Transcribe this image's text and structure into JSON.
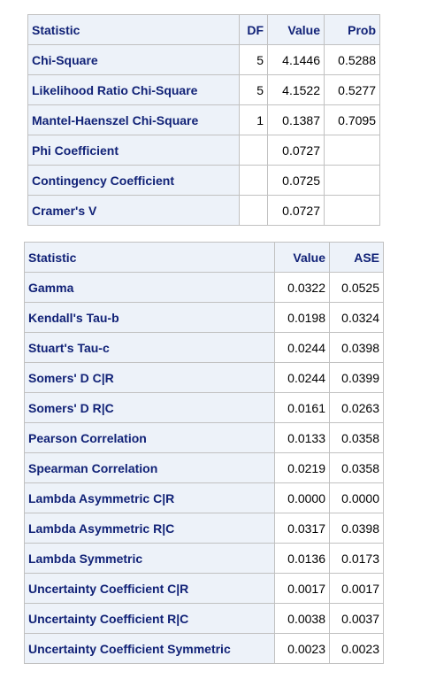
{
  "table1": {
    "headers": [
      "Statistic",
      "DF",
      "Value",
      "Prob"
    ],
    "rows": [
      {
        "statistic": "Chi-Square",
        "df": "5",
        "value": "4.1446",
        "prob": "0.5288"
      },
      {
        "statistic": "Likelihood Ratio Chi-Square",
        "df": "5",
        "value": "4.1522",
        "prob": "0.5277"
      },
      {
        "statistic": "Mantel-Haenszel Chi-Square",
        "df": "1",
        "value": "0.1387",
        "prob": "0.7095"
      },
      {
        "statistic": "Phi Coefficient",
        "df": "",
        "value": "0.0727",
        "prob": ""
      },
      {
        "statistic": "Contingency Coefficient",
        "df": "",
        "value": "0.0725",
        "prob": ""
      },
      {
        "statistic": "Cramer's V",
        "df": "",
        "value": "0.0727",
        "prob": ""
      }
    ]
  },
  "table2": {
    "headers": [
      "Statistic",
      "Value",
      "ASE"
    ],
    "rows": [
      {
        "statistic": "Gamma",
        "value": "0.0322",
        "ase": "0.0525"
      },
      {
        "statistic": "Kendall's Tau-b",
        "value": "0.0198",
        "ase": "0.0324"
      },
      {
        "statistic": "Stuart's Tau-c",
        "value": "0.0244",
        "ase": "0.0398"
      },
      {
        "statistic": "Somers' D C|R",
        "value": "0.0244",
        "ase": "0.0399"
      },
      {
        "statistic": "Somers' D R|C",
        "value": "0.0161",
        "ase": "0.0263"
      },
      {
        "statistic": "Pearson Correlation",
        "value": "0.0133",
        "ase": "0.0358"
      },
      {
        "statistic": "Spearman Correlation",
        "value": "0.0219",
        "ase": "0.0358"
      },
      {
        "statistic": "Lambda Asymmetric C|R",
        "value": "0.0000",
        "ase": "0.0000"
      },
      {
        "statistic": "Lambda Asymmetric R|C",
        "value": "0.0317",
        "ase": "0.0398"
      },
      {
        "statistic": "Lambda Symmetric",
        "value": "0.0136",
        "ase": "0.0173"
      },
      {
        "statistic": "Uncertainty Coefficient C|R",
        "value": "0.0017",
        "ase": "0.0017"
      },
      {
        "statistic": "Uncertainty Coefficient R|C",
        "value": "0.0038",
        "ase": "0.0037"
      },
      {
        "statistic": "Uncertainty Coefficient Symmetric",
        "value": "0.0023",
        "ase": "0.0023"
      }
    ]
  },
  "colors": {
    "header_bg": "#edf2f9",
    "header_text": "#112277",
    "border": "#c1c1c1",
    "cell_bg": "#ffffff"
  }
}
